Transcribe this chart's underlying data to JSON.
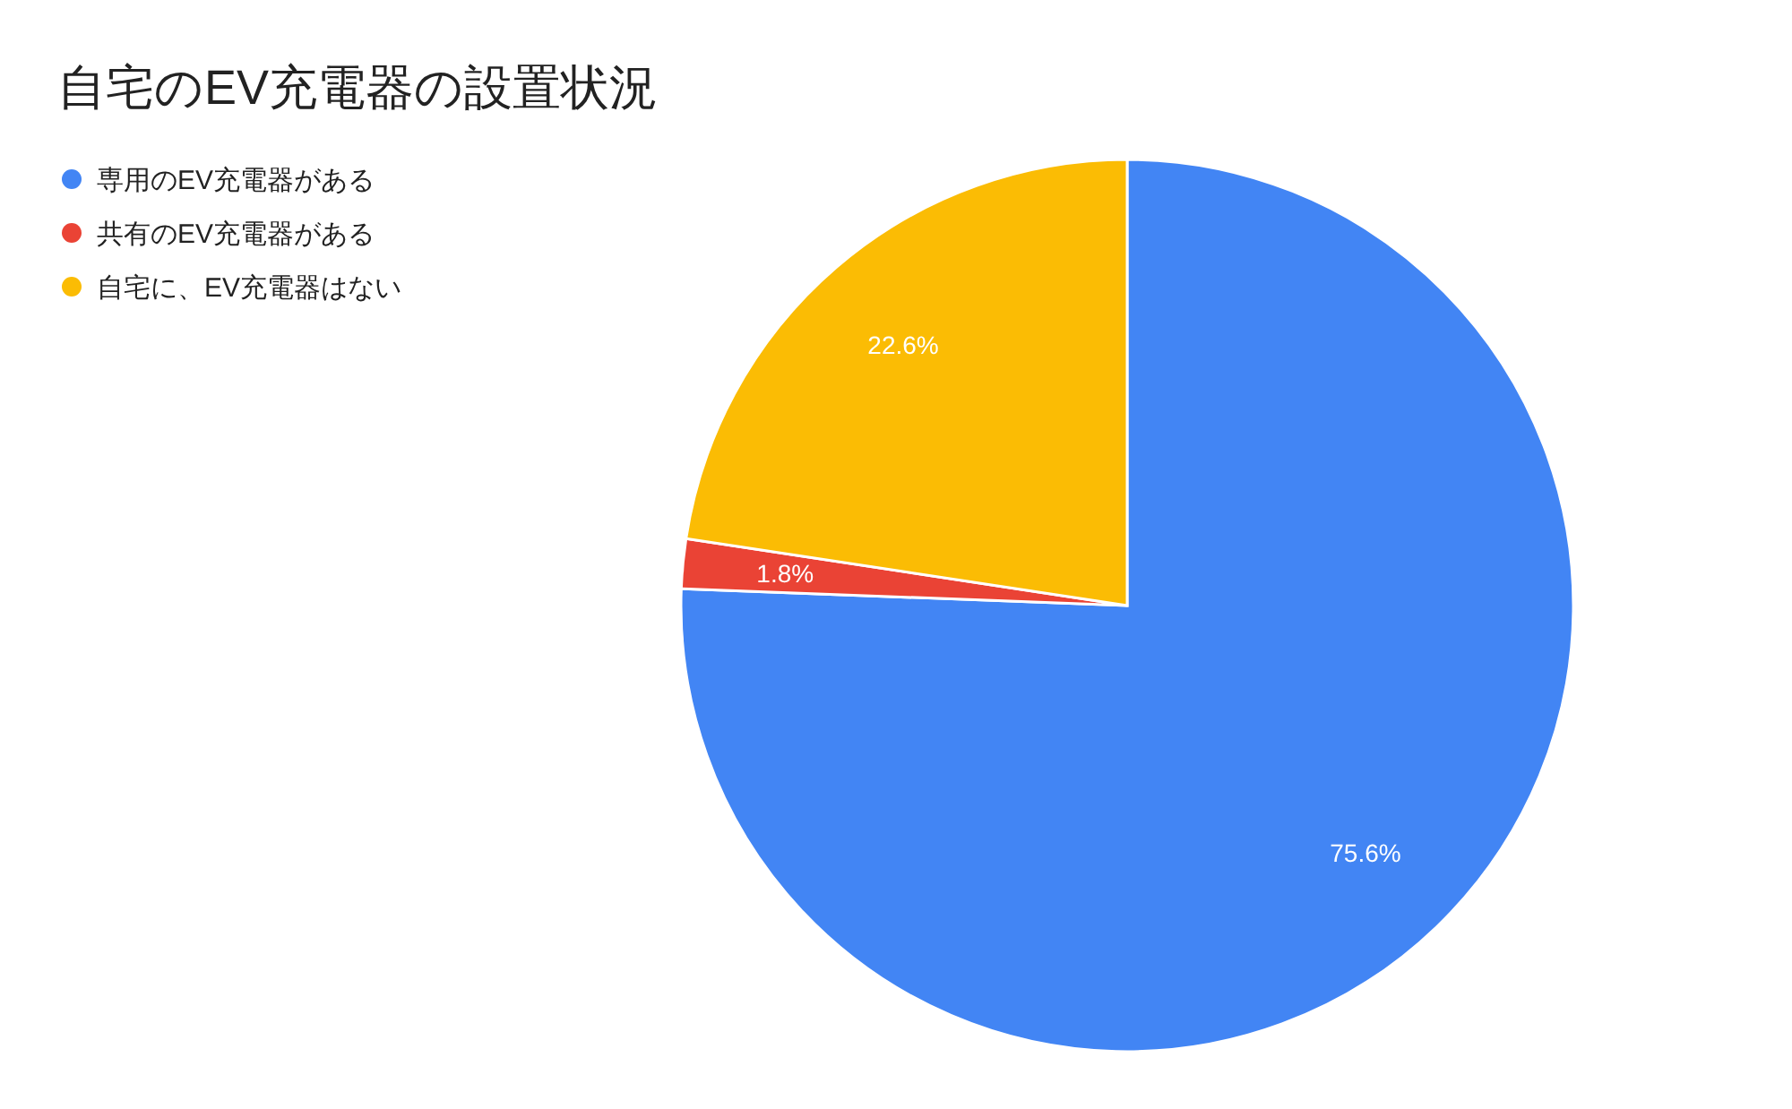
{
  "chart_data": {
    "type": "pie",
    "title": "自宅のEV充電器の設置状況",
    "categories": [
      "専用のEV充電器がある",
      "共有のEV充電器がある",
      "自宅に、EV充電器はない"
    ],
    "values": [
      75.6,
      1.8,
      22.6
    ],
    "colors": [
      "#4285f4",
      "#ea4335",
      "#fbbc04"
    ],
    "value_labels": [
      "75.6%",
      "1.8%",
      "22.6%"
    ],
    "legend": "top left"
  }
}
